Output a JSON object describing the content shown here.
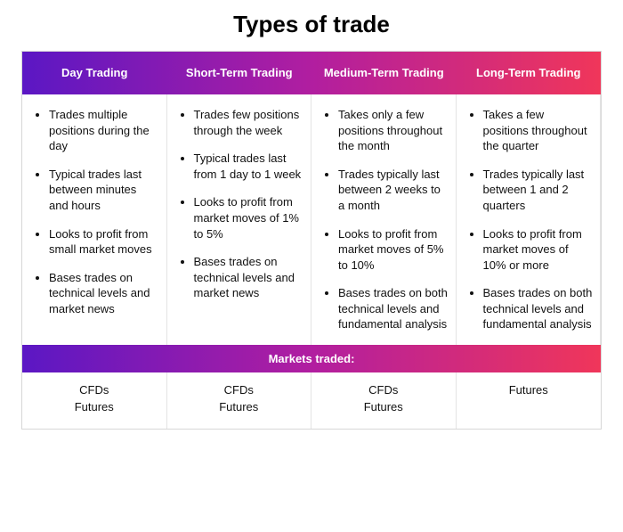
{
  "title": "Types of trade",
  "gradient": {
    "start": "#5b17c4",
    "mid": "#b11ea0",
    "end": "#f0365a"
  },
  "text_color": "#111111",
  "header_text_color": "#ffffff",
  "border_color": "#d7d7d7",
  "cell_divider_color": "#e4e4e4",
  "background_color": "#ffffff",
  "title_fontsize": 26,
  "header_fontsize": 13,
  "body_fontsize": 13,
  "columns": [
    {
      "header": "Day Trading",
      "points": [
        "Trades multiple positions during the day",
        "Typical trades last between minutes and hours",
        "Looks to profit from small market moves",
        "Bases trades on technical levels and market news"
      ],
      "markets": [
        "CFDs",
        "Futures"
      ]
    },
    {
      "header": "Short-Term Trading",
      "points": [
        "Trades few positions through the week",
        "Typical trades last from 1 day to 1 week",
        "Looks to profit from market moves of 1% to 5%",
        "Bases trades on technical levels and market news"
      ],
      "markets": [
        "CFDs",
        "Futures"
      ]
    },
    {
      "header": "Medium-Term Trading",
      "points": [
        "Takes only a few positions throughout the month",
        "Trades typically last between 2 weeks to a month",
        "Looks to profit from market moves of 5% to 10%",
        "Bases trades on both technical levels and fundamental analysis"
      ],
      "markets": [
        "CFDs",
        "Futures"
      ]
    },
    {
      "header": "Long-Term Trading",
      "points": [
        "Takes a few positions throughout the quarter",
        "Trades typically last between 1 and 2 quarters",
        "Looks to profit from market moves of 10% or more",
        "Bases trades on both technical levels and fundamental analysis"
      ],
      "markets": [
        "Futures"
      ]
    }
  ],
  "markets_header": "Markets traded:"
}
